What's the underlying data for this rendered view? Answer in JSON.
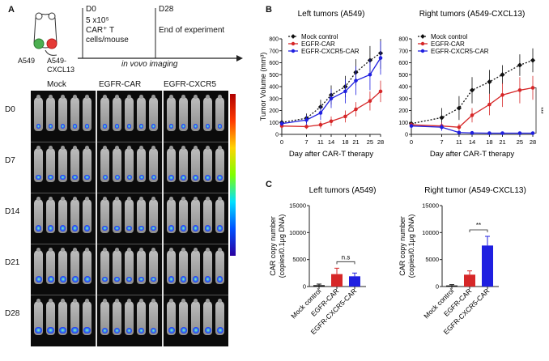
{
  "panels": {
    "a": {
      "letter": "A",
      "timeline": {
        "d0": "D0",
        "dose_line1": "5 x10⁵",
        "dose_line2": "CAR⁺ T",
        "dose_line3": "cells/mouse",
        "d28": "D28",
        "end_label": "End of experiment",
        "imaging_label": "in vovo imaging",
        "left_tumor": "A549",
        "right_tumor_line1": "A549-",
        "right_tumor_line2": "CXCL13"
      },
      "imaging": {
        "groups": [
          "Mock",
          "EGFR-CAR",
          "EGFR-CXCR5"
        ],
        "days": [
          "D0",
          "D7",
          "D14",
          "D21",
          "D28"
        ]
      }
    },
    "b": {
      "letter": "B"
    },
    "c": {
      "letter": "C"
    }
  },
  "colors": {
    "mock": "#111111",
    "egfr": "#d62728",
    "cxcr5": "#1f1fe0"
  },
  "chart_data": [
    {
      "type": "line",
      "title": "Left tumors (A549)",
      "xlabel": "Day after CAR-T therapy",
      "ylabel": "Tumor Volume (mm³)",
      "x": [
        0,
        7,
        11,
        14,
        18,
        21,
        25,
        28
      ],
      "ylim": [
        0,
        800
      ],
      "yticks": [
        0,
        100,
        200,
        300,
        400,
        500,
        600,
        700,
        800
      ],
      "series": [
        {
          "name": "Mock control",
          "values": [
            100,
            135,
            230,
            330,
            400,
            520,
            620,
            680
          ],
          "err": [
            20,
            40,
            60,
            80,
            90,
            110,
            120,
            130
          ]
        },
        {
          "name": "EGFR-CAR",
          "values": [
            70,
            65,
            80,
            110,
            150,
            210,
            280,
            360
          ],
          "err": [
            15,
            20,
            30,
            40,
            50,
            60,
            80,
            90
          ]
        },
        {
          "name": "EGFR-CXCR5-CAR",
          "values": [
            90,
            120,
            180,
            300,
            360,
            450,
            500,
            640
          ],
          "err": [
            20,
            40,
            60,
            80,
            100,
            120,
            130,
            140
          ]
        }
      ],
      "legend": "top-left"
    },
    {
      "type": "line",
      "title": "Right tumors (A549-CXCL13)",
      "xlabel": "Day after CAR-T therapy",
      "ylabel": "",
      "x": [
        0,
        7,
        11,
        14,
        18,
        21,
        25,
        28
      ],
      "ylim": [
        0,
        800
      ],
      "yticks": [
        0,
        100,
        200,
        300,
        400,
        500,
        600,
        700,
        800
      ],
      "series": [
        {
          "name": "Mock control",
          "values": [
            90,
            140,
            220,
            370,
            440,
            500,
            580,
            620
          ],
          "err": [
            20,
            80,
            100,
            110,
            100,
            80,
            90,
            100
          ]
        },
        {
          "name": "EGFR-CAR",
          "values": [
            80,
            70,
            60,
            160,
            250,
            330,
            370,
            390
          ],
          "err": [
            20,
            30,
            30,
            60,
            90,
            100,
            110,
            100
          ]
        },
        {
          "name": "EGFR-CXCR5-CAR",
          "values": [
            70,
            60,
            15,
            12,
            10,
            10,
            10,
            10
          ],
          "err": [
            20,
            30,
            10,
            5,
            5,
            5,
            5,
            5
          ]
        }
      ],
      "annotation": "***",
      "legend": "top-left"
    },
    {
      "type": "bar",
      "title": "Left tumors (A549)",
      "ylabel_line1": "CAR copy number",
      "ylabel_line2": "(copies/0.1μg DNA)",
      "categories": [
        "Mock control",
        "EGFR-CAR",
        "EGFR-CXCR5-CAR"
      ],
      "values": [
        250,
        2300,
        1900
      ],
      "err": [
        200,
        1100,
        600
      ],
      "ylim": [
        0,
        15000
      ],
      "yticks": [
        0,
        5000,
        10000,
        15000
      ],
      "annotation": "n.s"
    },
    {
      "type": "bar",
      "title": "Right tumor (A549-CXCL13)",
      "ylabel_line1": "CAR copy number",
      "ylabel_line2": "(copies/0.1μg DNA)",
      "categories": [
        "Mock control",
        "EGFR-CAR",
        "EGFR-CXCR5-CAR"
      ],
      "values": [
        200,
        2200,
        7600
      ],
      "err": [
        150,
        700,
        1700
      ],
      "ylim": [
        0,
        15000
      ],
      "yticks": [
        0,
        5000,
        10000,
        15000
      ],
      "annotation": "**"
    }
  ]
}
